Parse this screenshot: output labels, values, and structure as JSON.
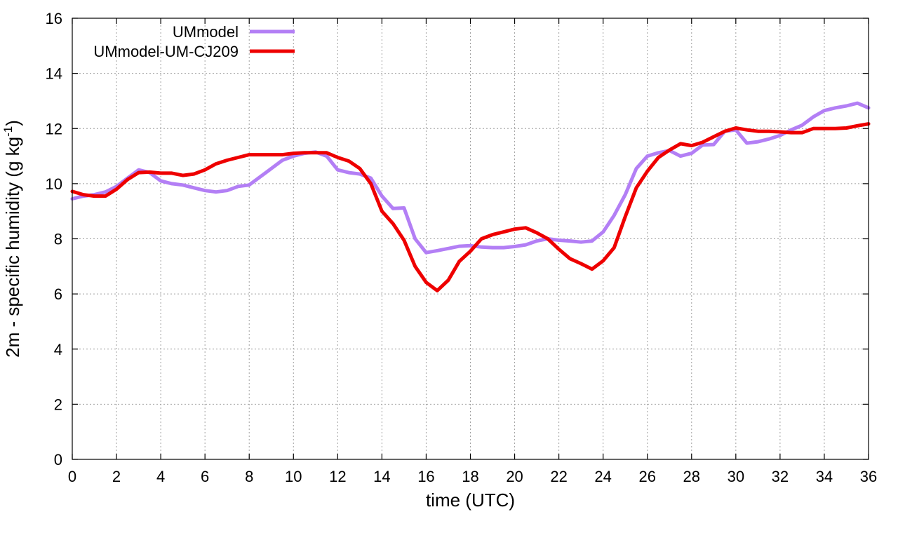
{
  "chart_data": {
    "type": "line",
    "title": "",
    "xlabel": "time (UTC)",
    "ylabel": {
      "prefix": "2m - specific humidity (g kg",
      "superscript": "-1",
      "suffix": ")"
    },
    "xlim": [
      0,
      36
    ],
    "ylim": [
      0,
      16
    ],
    "xticks": [
      0,
      2,
      4,
      6,
      8,
      10,
      12,
      14,
      16,
      18,
      20,
      22,
      24,
      26,
      28,
      30,
      32,
      34,
      36
    ],
    "yticks": [
      0,
      2,
      4,
      6,
      8,
      10,
      12,
      14,
      16
    ],
    "grid": true,
    "legend_position": "top-left",
    "series": [
      {
        "name": "UMmodel",
        "color": "#b37ff5",
        "x": [
          0,
          0.5,
          1,
          1.5,
          2,
          2.5,
          3,
          3.5,
          4,
          4.5,
          5,
          5.5,
          6,
          6.5,
          7,
          7.5,
          8,
          8.5,
          9,
          9.5,
          10,
          10.5,
          11,
          11.5,
          12,
          12.5,
          13,
          13.5,
          14,
          14.5,
          15,
          15.5,
          16,
          16.5,
          17,
          17.5,
          18,
          18.5,
          19,
          19.5,
          20,
          20.5,
          21,
          21.5,
          22,
          22.5,
          23,
          23.5,
          24,
          24.5,
          25,
          25.5,
          26,
          26.5,
          27,
          27.5,
          28,
          28.5,
          29,
          29.5,
          30,
          30.5,
          31,
          31.5,
          32,
          32.5,
          33,
          33.5,
          34,
          34.5,
          35,
          35.5,
          36
        ],
        "y": [
          9.45,
          9.55,
          9.6,
          9.7,
          9.9,
          10.2,
          10.5,
          10.4,
          10.1,
          10.0,
          9.95,
          9.85,
          9.75,
          9.7,
          9.75,
          9.9,
          9.95,
          10.25,
          10.55,
          10.85,
          11.0,
          11.1,
          11.15,
          11.0,
          10.5,
          10.4,
          10.35,
          10.2,
          9.55,
          9.1,
          9.12,
          8.0,
          7.5,
          7.57,
          7.65,
          7.73,
          7.75,
          7.7,
          7.68,
          7.68,
          7.72,
          7.78,
          7.92,
          8.0,
          7.95,
          7.92,
          7.88,
          7.92,
          8.25,
          8.85,
          9.6,
          10.55,
          11.0,
          11.12,
          11.2,
          11.0,
          11.1,
          11.4,
          11.42,
          11.9,
          11.95,
          11.47,
          11.52,
          11.62,
          11.75,
          11.95,
          12.12,
          12.42,
          12.65,
          12.75,
          12.82,
          12.92,
          12.75
        ]
      },
      {
        "name": "UMmodel-UM-CJ209",
        "color": "#ee0000",
        "x": [
          0,
          0.5,
          1,
          1.5,
          2,
          2.5,
          3,
          3.5,
          4,
          4.5,
          5,
          5.5,
          6,
          6.5,
          7,
          7.5,
          8,
          8.5,
          9,
          9.5,
          10,
          10.5,
          11,
          11.5,
          12,
          12.5,
          13,
          13.5,
          14,
          14.5,
          15,
          15.5,
          16,
          16.5,
          17,
          17.5,
          18,
          18.5,
          19,
          19.5,
          20,
          20.5,
          21,
          21.5,
          22,
          22.5,
          23,
          23.5,
          24,
          24.5,
          25,
          25.5,
          26,
          26.5,
          27,
          27.5,
          28,
          28.5,
          29,
          29.5,
          30,
          30.5,
          31,
          31.5,
          32,
          32.5,
          33,
          33.5,
          34,
          34.5,
          35,
          35.5,
          36
        ],
        "y": [
          9.72,
          9.6,
          9.55,
          9.55,
          9.8,
          10.15,
          10.4,
          10.42,
          10.38,
          10.38,
          10.3,
          10.35,
          10.5,
          10.72,
          10.85,
          10.95,
          11.05,
          11.05,
          11.05,
          11.05,
          11.1,
          11.12,
          11.12,
          11.12,
          10.95,
          10.82,
          10.55,
          10.0,
          9.0,
          8.55,
          7.95,
          7.0,
          6.42,
          6.12,
          6.5,
          7.18,
          7.55,
          8.0,
          8.15,
          8.25,
          8.35,
          8.4,
          8.22,
          8.0,
          7.62,
          7.28,
          7.1,
          6.9,
          7.2,
          7.68,
          8.8,
          9.85,
          10.45,
          10.95,
          11.22,
          11.45,
          11.38,
          11.5,
          11.7,
          11.9,
          12.02,
          11.95,
          11.9,
          11.9,
          11.88,
          11.85,
          11.85,
          12.0,
          12.0,
          12.0,
          12.02,
          12.1,
          12.17
        ]
      }
    ]
  }
}
